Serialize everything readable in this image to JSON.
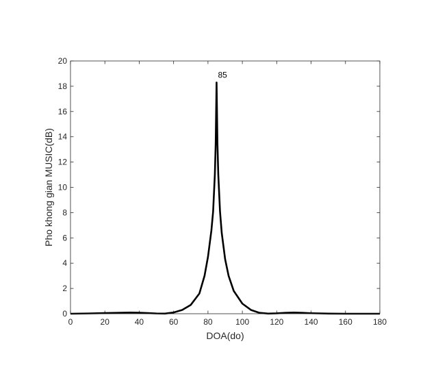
{
  "chart_data": {
    "type": "line",
    "title": "",
    "xlabel": "DOA(do)",
    "ylabel": "Pho khong gian MUSIC(dB)",
    "xlim": [
      0,
      180
    ],
    "ylim": [
      0,
      20
    ],
    "x_ticks": [
      "0",
      "20",
      "40",
      "60",
      "80",
      "100",
      "120",
      "140",
      "160",
      "180"
    ],
    "y_ticks": [
      "0",
      "2",
      "4",
      "6",
      "8",
      "10",
      "12",
      "14",
      "16",
      "18",
      "20"
    ],
    "grid": false,
    "legend": "none",
    "line_color": "#000000",
    "series": [
      {
        "x": [
          0,
          10,
          20,
          30,
          35,
          40,
          45,
          50,
          55,
          60,
          65,
          70,
          75,
          78,
          80,
          82,
          83,
          84,
          84.5,
          85,
          85.5,
          86,
          87,
          88,
          90,
          92,
          95,
          100,
          105,
          110,
          115,
          120,
          125,
          130,
          135,
          140,
          150,
          160,
          170,
          180
        ],
        "y": [
          0.0,
          0.02,
          0.05,
          0.08,
          0.09,
          0.08,
          0.05,
          0.02,
          0.01,
          0.1,
          0.3,
          0.7,
          1.6,
          3.0,
          4.5,
          6.6,
          8.1,
          11.0,
          13.5,
          18.3,
          13.5,
          11.0,
          8.1,
          6.4,
          4.3,
          3.0,
          1.8,
          0.8,
          0.3,
          0.07,
          0.01,
          0.03,
          0.07,
          0.09,
          0.07,
          0.04,
          0.01,
          0.0,
          0.0,
          0.0
        ]
      }
    ],
    "annotations": [
      {
        "text": "85",
        "x": 85,
        "y": 18.3
      }
    ]
  }
}
